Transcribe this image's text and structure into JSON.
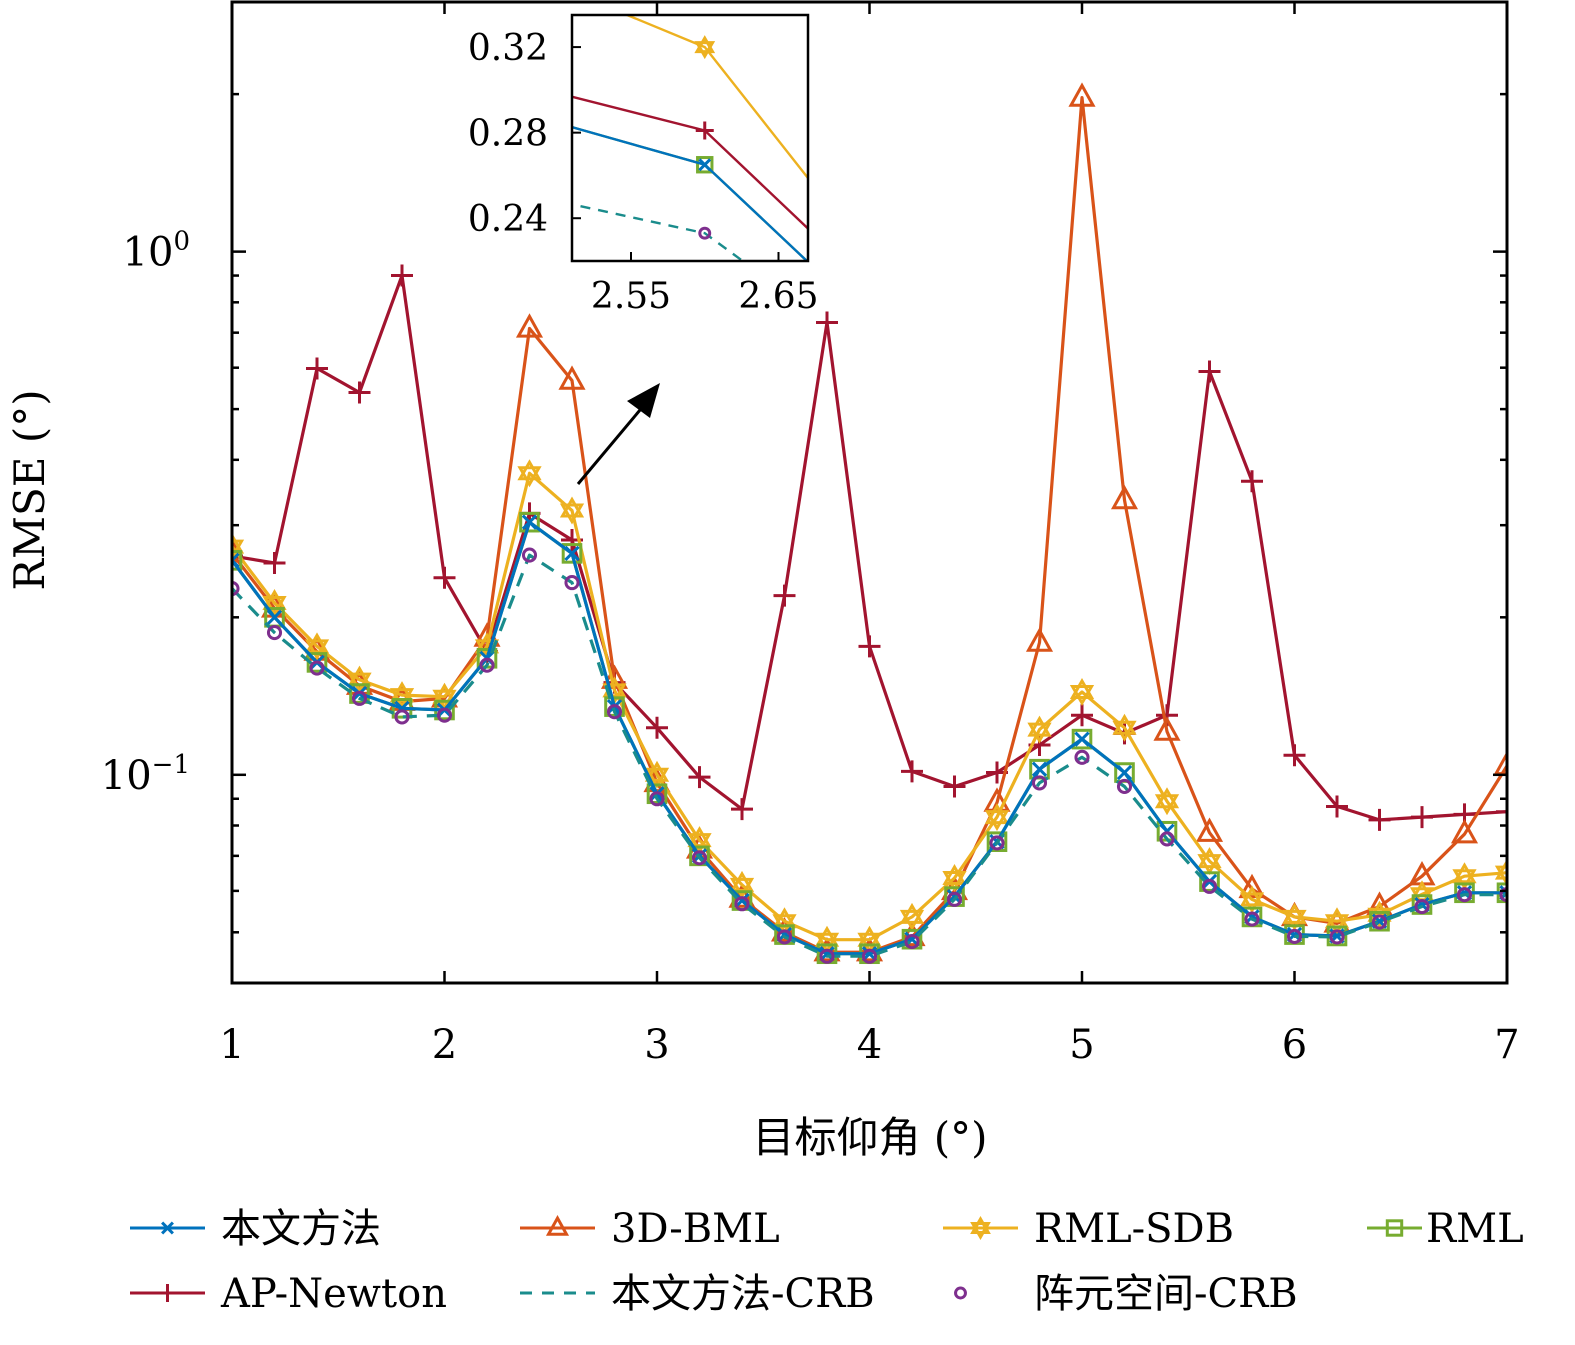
{
  "chart_data": {
    "type": "line",
    "title": "",
    "xlabel": "目标仰角 (°)",
    "ylabel": "RMSE (°)",
    "yscale": "log",
    "xlim": [
      1,
      7
    ],
    "ylim": [
      0.04,
      3.0
    ],
    "grid": false,
    "x_ticks": [
      1,
      2,
      3,
      4,
      5,
      6,
      7
    ],
    "x_tick_labels": [
      "1",
      "2",
      "3",
      "4",
      "5",
      "6",
      "7"
    ],
    "y_ticks": [
      {
        "value": 0.1,
        "base": "10",
        "exp": "−1"
      },
      {
        "value": 1,
        "base": "10",
        "exp": "0"
      }
    ],
    "x": [
      1.0,
      1.2,
      1.4,
      1.6,
      1.8,
      2.0,
      2.2,
      2.4,
      2.6,
      2.8,
      3.0,
      3.2,
      3.4,
      3.6,
      3.8,
      4.0,
      4.2,
      4.4,
      4.6,
      4.8,
      5.0,
      5.2,
      5.4,
      5.6,
      5.8,
      6.0,
      6.2,
      6.4,
      6.6,
      6.8,
      7.0
    ],
    "series": [
      {
        "name": "本文方法",
        "color": "#0072BD",
        "marker": "x",
        "dash": false,
        "values": [
          0.257,
          0.2,
          0.164,
          0.143,
          0.134,
          0.133,
          0.167,
          0.304,
          0.265,
          0.135,
          0.092,
          0.07,
          0.0575,
          0.0495,
          0.0455,
          0.0455,
          0.0485,
          0.0585,
          0.0745,
          0.1025,
          0.117,
          0.101,
          0.078,
          0.0625,
          0.0535,
          0.0495,
          0.0492,
          0.0525,
          0.0565,
          0.0595,
          0.0595
        ]
      },
      {
        "name": "3D-BML",
        "color": "#D95319",
        "marker": "triangle",
        "dash": false,
        "values": [
          0.265,
          0.208,
          0.172,
          0.148,
          0.138,
          0.14,
          0.183,
          0.713,
          0.567,
          0.152,
          0.0965,
          0.072,
          0.058,
          0.05,
          0.0458,
          0.0458,
          0.049,
          0.06,
          0.0885,
          0.179,
          1.97,
          0.335,
          0.121,
          0.0775,
          0.0605,
          0.0535,
          0.052,
          0.056,
          0.064,
          0.077,
          0.104
        ]
      },
      {
        "name": "RML-SDB",
        "color": "#EDB120",
        "marker": "star",
        "dash": false,
        "values": [
          0.273,
          0.213,
          0.176,
          0.152,
          0.142,
          0.141,
          0.176,
          0.377,
          0.32,
          0.145,
          0.1,
          0.075,
          0.0616,
          0.0525,
          0.0484,
          0.0484,
          0.0535,
          0.0635,
          0.083,
          0.122,
          0.144,
          0.123,
          0.089,
          0.0684,
          0.0578,
          0.0535,
          0.0525,
          0.054,
          0.0591,
          0.064,
          0.065
        ]
      },
      {
        "name": "RML",
        "color": "#77AC30",
        "marker": "square",
        "dash": false,
        "values": [
          0.257,
          0.2,
          0.164,
          0.143,
          0.134,
          0.133,
          0.167,
          0.304,
          0.265,
          0.135,
          0.092,
          0.07,
          0.0575,
          0.0495,
          0.0455,
          0.0455,
          0.0485,
          0.0585,
          0.0745,
          0.1025,
          0.117,
          0.101,
          0.078,
          0.0625,
          0.0535,
          0.0495,
          0.0492,
          0.0525,
          0.0565,
          0.0595,
          0.0595
        ]
      },
      {
        "name": "AP-Newton",
        "color": "#A2142F",
        "marker": "plus",
        "dash": false,
        "values": [
          0.262,
          0.254,
          0.598,
          0.538,
          0.9,
          0.238,
          0.172,
          0.316,
          0.281,
          0.15,
          0.123,
          0.099,
          0.086,
          0.22,
          0.732,
          0.176,
          0.1015,
          0.095,
          0.101,
          0.114,
          0.13,
          0.12,
          0.13,
          0.59,
          0.364,
          0.109,
          0.087,
          0.082,
          0.083,
          0.084,
          0.085
        ]
      },
      {
        "name": "本文方法-CRB",
        "color": "#1A8C8C",
        "marker": "none",
        "dash": true,
        "values": [
          0.227,
          0.187,
          0.16,
          0.14,
          0.129,
          0.13,
          0.162,
          0.263,
          0.233,
          0.132,
          0.09,
          0.0694,
          0.0567,
          0.049,
          0.045,
          0.045,
          0.048,
          0.0578,
          0.0741,
          0.0965,
          0.108,
          0.095,
          0.0754,
          0.0612,
          0.053,
          0.0491,
          0.049,
          0.0523,
          0.056,
          0.059,
          0.059
        ]
      },
      {
        "name": "阵元空间-CRB",
        "color": "#7E2F8E",
        "marker": "circle",
        "dash": false,
        "line": false,
        "values": [
          0.227,
          0.187,
          0.16,
          0.14,
          0.129,
          0.13,
          0.162,
          0.263,
          0.233,
          0.132,
          0.09,
          0.0694,
          0.0567,
          0.049,
          0.045,
          0.045,
          0.048,
          0.0578,
          0.0741,
          0.0965,
          0.108,
          0.095,
          0.0754,
          0.0612,
          0.053,
          0.0491,
          0.049,
          0.0523,
          0.056,
          0.059,
          0.059
        ]
      }
    ],
    "inset": {
      "xlim": [
        2.51,
        2.67
      ],
      "ylim": [
        0.22,
        0.335
      ],
      "x_ticks": [
        2.55,
        2.65
      ],
      "x_tick_labels": [
        "2.55",
        "2.65"
      ],
      "y_ticks": [
        0.24,
        0.28,
        0.32
      ],
      "y_tick_labels": [
        "0.24",
        "0.28",
        "0.32"
      ],
      "yscale": "linear"
    },
    "annotations": [
      {
        "type": "arrow",
        "from_x": 2.65,
        "from_y": 0.29,
        "to": "inset"
      }
    ],
    "legend": {
      "placement": "bottom",
      "columns": 4
    }
  }
}
